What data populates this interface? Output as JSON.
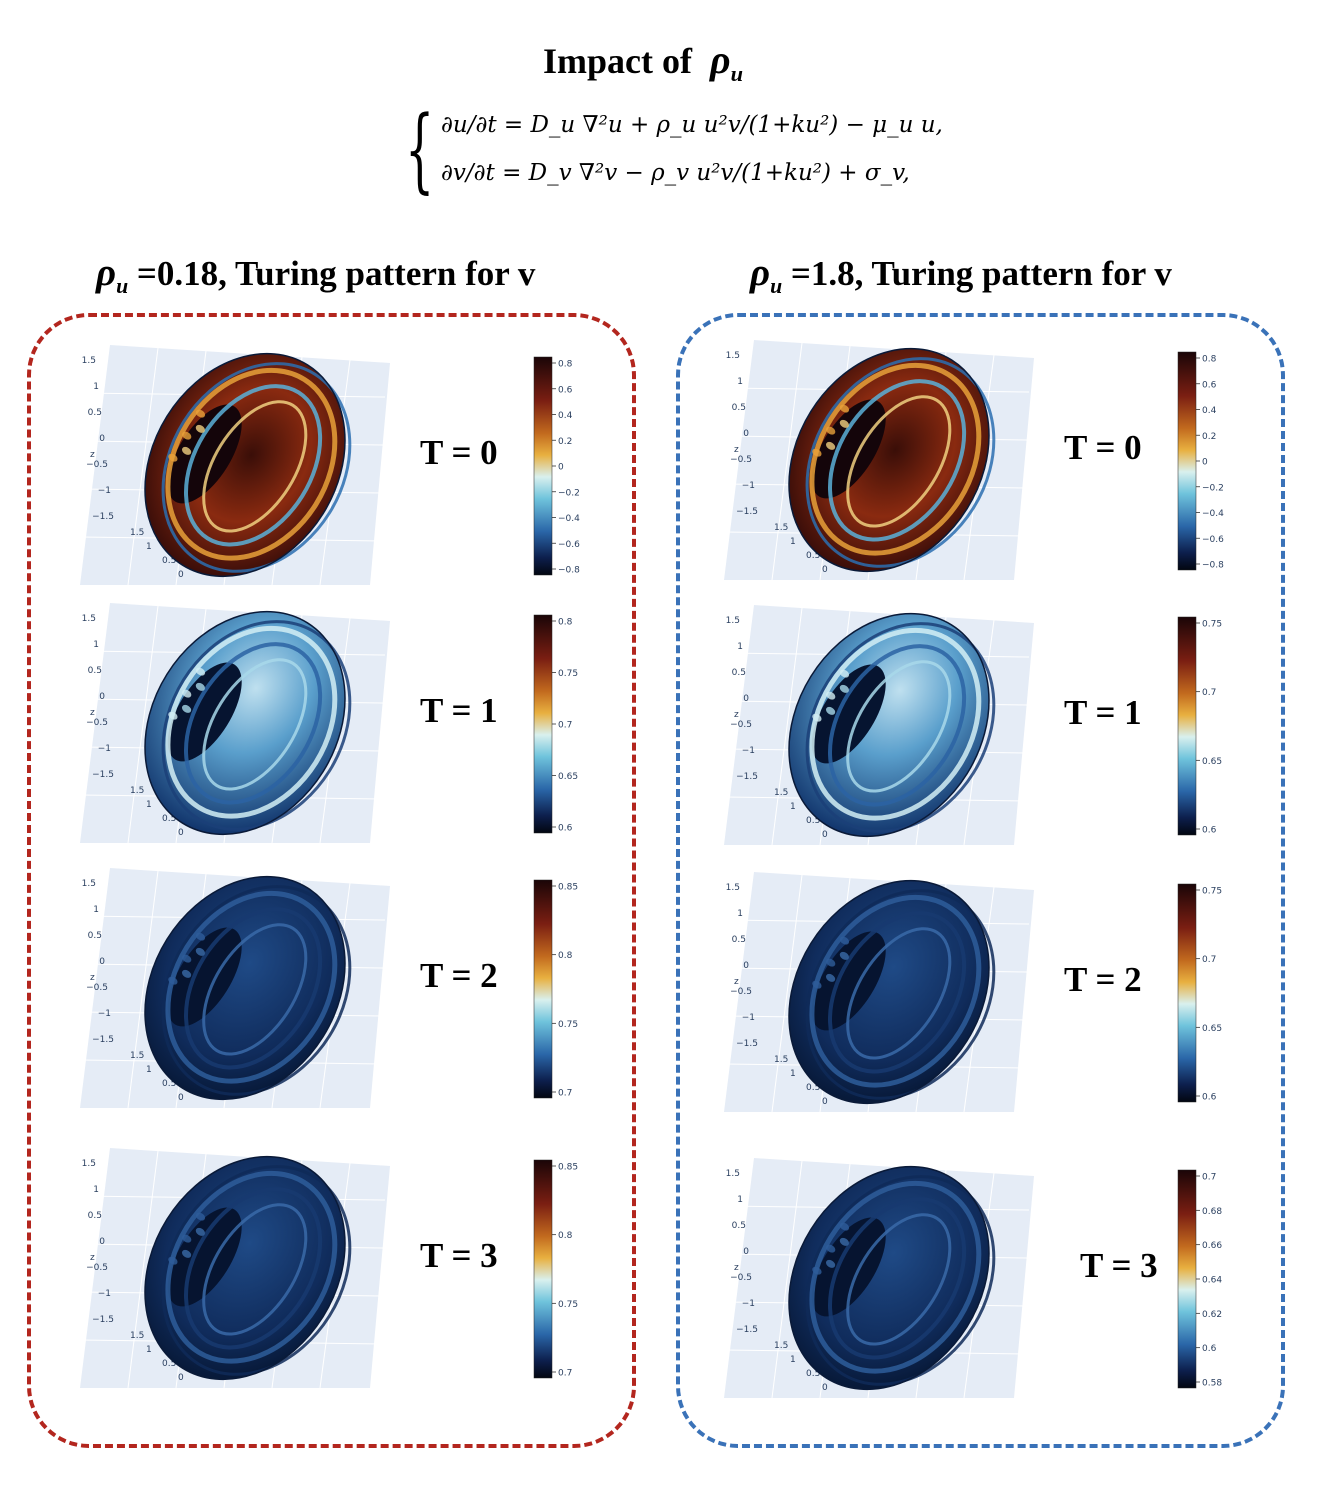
{
  "header": {
    "title_prefix": "Impact of",
    "title_symbol": "ρ",
    "title_subscript": "u",
    "equation_1": "∂u/∂t = D_u ∇²u + ρ_u u²v/(1+ku²) − μ_u u,",
    "equation_2": "∂v/∂t = D_v ∇²v − ρ_v u²v/(1+ku²) + σ_v,"
  },
  "panels": [
    {
      "symbol": "ρ",
      "subscript": "u",
      "title_rest": "=0.18, Turing pattern for v",
      "frame_color": "#b3261e",
      "rows": [
        {
          "label": "T = 0",
          "pattern": "turing-high-contrast",
          "colorbar_ticks": [
            "0.8",
            "0.6",
            "0.4",
            "0.2",
            "0",
            "−0.2",
            "−0.4",
            "−0.6",
            "−0.8"
          ]
        },
        {
          "label": "T = 1",
          "pattern": "turing-light-blue",
          "colorbar_ticks": [
            "0.8",
            "0.75",
            "0.7",
            "0.65",
            "0.6"
          ]
        },
        {
          "label": "T = 2",
          "pattern": "turing-dark-blue",
          "colorbar_ticks": [
            "0.85",
            "0.8",
            "0.75",
            "0.7"
          ]
        },
        {
          "label": "T = 3",
          "pattern": "turing-dark-blue",
          "colorbar_ticks": [
            "0.85",
            "0.8",
            "0.75",
            "0.7"
          ]
        }
      ]
    },
    {
      "symbol": "ρ",
      "subscript": "u",
      "title_rest": "=1.8, Turing pattern for v",
      "frame_color": "#3a72b8",
      "rows": [
        {
          "label": "T = 0",
          "pattern": "turing-high-contrast",
          "colorbar_ticks": [
            "0.8",
            "0.6",
            "0.4",
            "0.2",
            "0",
            "−0.2",
            "−0.4",
            "−0.6",
            "−0.8"
          ]
        },
        {
          "label": "T = 1",
          "pattern": "turing-light-blue",
          "colorbar_ticks": [
            "0.75",
            "0.7",
            "0.65",
            "0.6"
          ]
        },
        {
          "label": "T = 2",
          "pattern": "turing-dark-blue",
          "colorbar_ticks": [
            "0.75",
            "0.7",
            "0.65",
            "0.6"
          ]
        },
        {
          "label": "T = 3",
          "pattern": "turing-dark-blue",
          "colorbar_ticks": [
            "0.7",
            "0.68",
            "0.66",
            "0.64",
            "0.62",
            "0.6",
            "0.58"
          ]
        }
      ]
    }
  ],
  "axes": {
    "z_label": "z",
    "z_ticks": [
      "1.5",
      "1",
      "0.5",
      "0",
      "−0.5",
      "−1",
      "−1.5"
    ],
    "x_ticks": [
      "1.5",
      "1",
      "0.5",
      "0"
    ]
  },
  "colors": {
    "left_frame": "#b3261e",
    "right_frame": "#3a72b8",
    "scene_bg": "#e5ecf6"
  }
}
